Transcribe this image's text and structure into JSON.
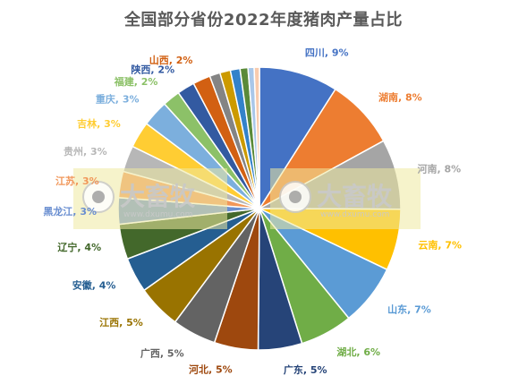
{
  "chart_data": {
    "type": "pie",
    "title": "全国部分省份2022年度猪肉产量占比",
    "slices": [
      {
        "name": "四川",
        "label": "9%",
        "value": 9.0,
        "color": "#4472C4"
      },
      {
        "name": "湖南",
        "label": "8%",
        "value": 8.0,
        "color": "#ED7D31"
      },
      {
        "name": "河南",
        "label": "8%",
        "value": 8.0,
        "color": "#A5A5A5"
      },
      {
        "name": "云南",
        "label": "7%",
        "value": 7.0,
        "color": "#FFC000"
      },
      {
        "name": "山东",
        "label": "7%",
        "value": 7.0,
        "color": "#5B9BD5"
      },
      {
        "name": "湖北",
        "label": "6%",
        "value": 6.0,
        "color": "#70AD47"
      },
      {
        "name": "广东",
        "label": "5%",
        "value": 5.0,
        "color": "#264478"
      },
      {
        "name": "河北",
        "label": "5%",
        "value": 5.0,
        "color": "#9E480E"
      },
      {
        "name": "广西",
        "label": "5%",
        "value": 5.0,
        "color": "#636363"
      },
      {
        "name": "江西",
        "label": "5%",
        "value": 5.0,
        "color": "#997300"
      },
      {
        "name": "安徽",
        "label": "4%",
        "value": 4.0,
        "color": "#255E91"
      },
      {
        "name": "辽宁",
        "label": "4%",
        "value": 4.0,
        "color": "#43682B"
      },
      {
        "name": "黑龙江",
        "label": "3%",
        "value": 3.0,
        "color": "#698ED0"
      },
      {
        "name": "江苏",
        "label": "3%",
        "value": 3.0,
        "color": "#F1975A"
      },
      {
        "name": "贵州",
        "label": "3%",
        "value": 3.0,
        "color": "#B7B7B7"
      },
      {
        "name": "吉林",
        "label": "3%",
        "value": 3.0,
        "color": "#FFCD33"
      },
      {
        "name": "重庆",
        "label": "3%",
        "value": 3.0,
        "color": "#7CAFDD"
      },
      {
        "name": "福建",
        "label": "2%",
        "value": 2.0,
        "color": "#8CC168"
      },
      {
        "name": "陕西",
        "label": "2%",
        "value": 2.0,
        "color": "#335AA1"
      },
      {
        "name": "山西",
        "label": "2%",
        "value": 2.0,
        "color": "#D26012"
      },
      {
        "name": "",
        "label": "",
        "value": 1.2,
        "color": "#848484"
      },
      {
        "name": "",
        "label": "",
        "value": 1.2,
        "color": "#CC9A00"
      },
      {
        "name": "",
        "label": "",
        "value": 1.1,
        "color": "#3382CA"
      },
      {
        "name": "",
        "label": "",
        "value": 0.9,
        "color": "#5A8A39"
      },
      {
        "name": "",
        "label": "",
        "value": 0.7,
        "color": "#A9C7E9"
      },
      {
        "name": "",
        "label": "",
        "value": 0.6,
        "color": "#F8CBAD"
      }
    ]
  },
  "watermark": {
    "brand": "大畜牧",
    "url": "www.dxumu.com",
    "color": "#C9C9C9",
    "band_color": "#EFE9A0"
  }
}
